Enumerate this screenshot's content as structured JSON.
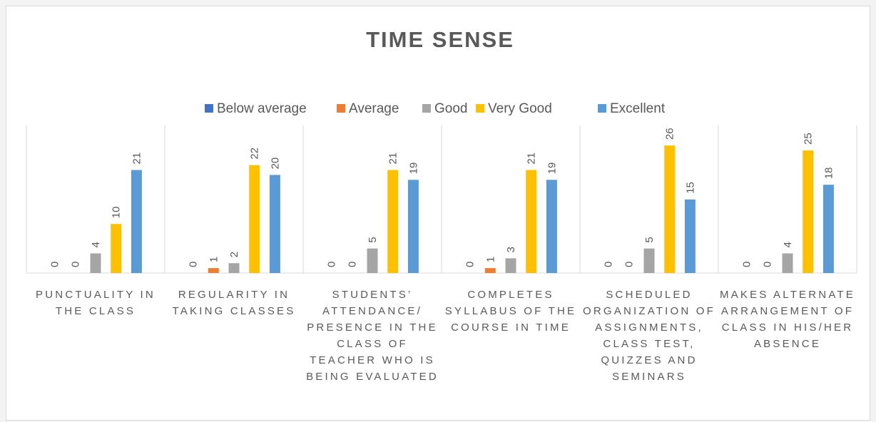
{
  "chart_data": {
    "type": "bar",
    "title": "TIME SENSE",
    "categories": [
      "PUNCTUALITY IN THE CLASS",
      "REGULARITY IN TAKING CLASSES",
      "STUDENTS’ ATTENDANCE/ PRESENCE IN THE CLASS OF TEACHER WHO IS BEING EVALUATED",
      "COMPLETES SYLLABUS OF THE COURSE IN TIME",
      "SCHEDULED ORGANIZATION OF ASSIGNMENTS, CLASS TEST, QUIZZES AND SEMINARS",
      "MAKES ALTERNATE ARRANGEMENT OF CLASS IN HIS/HER ABSENCE"
    ],
    "series": [
      {
        "name": "Below average",
        "color": "#4472c4",
        "values": [
          0,
          0,
          0,
          0,
          0,
          0
        ]
      },
      {
        "name": "Average",
        "color": "#ed7d31",
        "values": [
          0,
          1,
          0,
          1,
          0,
          0
        ]
      },
      {
        "name": "Good",
        "color": "#a5a5a5",
        "values": [
          4,
          2,
          5,
          3,
          5,
          4
        ]
      },
      {
        "name": "Very Good",
        "color": "#ffc000",
        "values": [
          10,
          22,
          21,
          21,
          26,
          25
        ]
      },
      {
        "name": "Excellent",
        "color": "#5b9bd5",
        "values": [
          21,
          20,
          19,
          19,
          15,
          18
        ]
      }
    ],
    "legend": "top",
    "data_labels": true
  }
}
